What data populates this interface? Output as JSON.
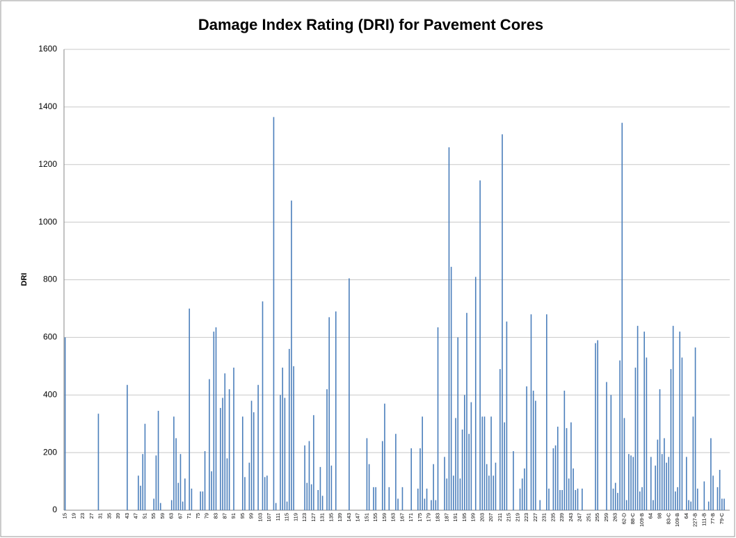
{
  "chart_data": {
    "type": "bar",
    "title": "Damage Index Rating (DRI) for Pavement Cores",
    "y_label": "DRI",
    "color": "#4a7ebb",
    "grid": true,
    "ylim": [
      0,
      1600
    ],
    "yticks": [
      0,
      200,
      400,
      600,
      800,
      1000,
      1200,
      1400,
      1600
    ],
    "categories": [
      "15",
      null,
      null,
      null,
      "19",
      null,
      null,
      null,
      "23",
      null,
      null,
      null,
      "27",
      null,
      null,
      null,
      "31",
      null,
      null,
      null,
      "35",
      null,
      null,
      null,
      "39",
      null,
      null,
      null,
      "43",
      null,
      null,
      null,
      "47",
      null,
      null,
      null,
      "51",
      null,
      null,
      null,
      "55",
      null,
      null,
      null,
      "59",
      null,
      null,
      null,
      "63",
      null,
      null,
      null,
      "67",
      null,
      null,
      null,
      "71",
      null,
      null,
      null,
      "75",
      null,
      null,
      null,
      "79",
      null,
      null,
      null,
      "83",
      null,
      null,
      null,
      "87",
      null,
      null,
      null,
      "91",
      null,
      null,
      null,
      "95",
      null,
      null,
      null,
      "99",
      null,
      null,
      null,
      "103",
      null,
      null,
      null,
      "107",
      null,
      null,
      null,
      "111",
      null,
      null,
      null,
      "115",
      null,
      null,
      null,
      "119",
      null,
      null,
      null,
      "123",
      null,
      null,
      null,
      "127",
      null,
      null,
      null,
      "131",
      null,
      null,
      null,
      "135",
      null,
      null,
      null,
      "139",
      null,
      null,
      null,
      "143",
      null,
      null,
      null,
      "147",
      null,
      null,
      null,
      "151",
      null,
      null,
      null,
      "155",
      null,
      null,
      null,
      "159",
      null,
      null,
      null,
      "163",
      null,
      null,
      null,
      "167",
      null,
      null,
      null,
      "171",
      null,
      null,
      null,
      "175",
      null,
      null,
      null,
      "179",
      null,
      null,
      null,
      "183",
      null,
      null,
      null,
      "187",
      null,
      null,
      null,
      "191",
      null,
      null,
      null,
      "195",
      null,
      null,
      null,
      "199",
      null,
      null,
      null,
      "203",
      null,
      null,
      null,
      "207",
      null,
      null,
      null,
      "211",
      null,
      null,
      null,
      "215",
      null,
      null,
      null,
      "219",
      null,
      null,
      null,
      "223",
      null,
      null,
      null,
      "227",
      null,
      null,
      null,
      "231",
      null,
      null,
      null,
      "235",
      null,
      null,
      null,
      "239",
      null,
      null,
      null,
      "243",
      null,
      null,
      null,
      "247",
      null,
      null,
      null,
      "251",
      null,
      null,
      null,
      "255",
      null,
      null,
      null,
      "259",
      null,
      null,
      null,
      "263",
      null,
      null,
      null,
      "62-D",
      null,
      null,
      null,
      "88-C",
      null,
      null,
      null,
      "109-B",
      null,
      null,
      null,
      "64",
      null,
      null,
      null,
      "98",
      null,
      null,
      null,
      "83-C",
      null,
      null,
      null,
      "109-B",
      null,
      null,
      null,
      "64",
      null,
      null,
      null,
      "227-B",
      null,
      null,
      null,
      "111-B",
      null,
      null,
      null,
      "77-B",
      null,
      null,
      null,
      "79-C",
      null,
      null,
      null
    ],
    "values": [
      600,
      0,
      0,
      0,
      0,
      0,
      0,
      0,
      0,
      0,
      0,
      0,
      0,
      0,
      0,
      335,
      0,
      0,
      0,
      0,
      0,
      0,
      0,
      0,
      0,
      0,
      0,
      0,
      435,
      0,
      0,
      0,
      0,
      120,
      85,
      195,
      300,
      0,
      0,
      0,
      40,
      190,
      345,
      25,
      0,
      0,
      0,
      0,
      35,
      325,
      250,
      95,
      195,
      30,
      110,
      0,
      700,
      75,
      0,
      0,
      0,
      65,
      65,
      205,
      0,
      455,
      135,
      620,
      635,
      0,
      355,
      390,
      475,
      180,
      420,
      0,
      495,
      0,
      0,
      0,
      325,
      115,
      0,
      165,
      380,
      340,
      0,
      435,
      0,
      725,
      115,
      120,
      0,
      0,
      1365,
      25,
      0,
      400,
      495,
      390,
      30,
      560,
      1075,
      500,
      0,
      0,
      0,
      0,
      225,
      95,
      240,
      90,
      330,
      0,
      70,
      150,
      50,
      0,
      420,
      670,
      155,
      0,
      690,
      0,
      0,
      0,
      0,
      0,
      805,
      0,
      0,
      0,
      0,
      0,
      0,
      0,
      250,
      160,
      0,
      80,
      80,
      0,
      0,
      240,
      370,
      0,
      80,
      0,
      0,
      265,
      40,
      0,
      80,
      0,
      0,
      0,
      215,
      0,
      0,
      75,
      215,
      325,
      40,
      75,
      0,
      35,
      160,
      35,
      635,
      0,
      0,
      185,
      110,
      1260,
      845,
      120,
      320,
      600,
      110,
      280,
      400,
      685,
      265,
      375,
      0,
      810,
      0,
      1145,
      325,
      325,
      160,
      120,
      325,
      120,
      165,
      0,
      490,
      1305,
      305,
      655,
      0,
      0,
      205,
      0,
      0,
      75,
      110,
      145,
      430,
      0,
      680,
      415,
      380,
      0,
      35,
      0,
      0,
      680,
      75,
      0,
      215,
      225,
      290,
      70,
      70,
      415,
      285,
      110,
      305,
      145,
      70,
      75,
      0,
      75,
      0,
      0,
      0,
      0,
      0,
      580,
      590,
      0,
      0,
      0,
      445,
      0,
      400,
      75,
      95,
      60,
      520,
      1345,
      320,
      35,
      195,
      190,
      185,
      495,
      640,
      65,
      80,
      620,
      530,
      0,
      185,
      35,
      155,
      245,
      420,
      195,
      250,
      165,
      185,
      490,
      640,
      65,
      80,
      620,
      530,
      0,
      185,
      35,
      30,
      325,
      565,
      75,
      0,
      0,
      100,
      0,
      30,
      250,
      120,
      0,
      80,
      140,
      40,
      40,
      0,
      0
    ]
  }
}
